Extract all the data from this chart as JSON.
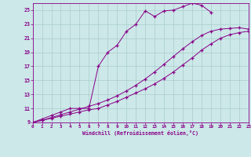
{
  "xlabel": "Windchill (Refroidissement éolien,°C)",
  "xlim": [
    0,
    23
  ],
  "ylim": [
    9,
    26
  ],
  "xticks": [
    0,
    1,
    2,
    3,
    4,
    5,
    6,
    7,
    8,
    9,
    10,
    11,
    12,
    13,
    14,
    15,
    16,
    17,
    18,
    19,
    20,
    21,
    22,
    23
  ],
  "yticks": [
    9,
    11,
    13,
    15,
    17,
    19,
    21,
    23,
    25
  ],
  "bg_color": "#cce8e8",
  "grid_color": "#aacccc",
  "line_color": "#880088",
  "curve1_x": [
    0,
    1,
    2,
    3,
    4,
    5,
    6,
    7,
    8,
    9,
    10,
    11,
    12,
    13,
    14,
    15,
    16,
    17,
    18,
    19
  ],
  "curve1_y": [
    9,
    9.5,
    10,
    10.5,
    11,
    11,
    11,
    17.0,
    19.0,
    20.0,
    22.0,
    23.0,
    24.9,
    24.1,
    24.9,
    25.0,
    25.5,
    26.0,
    25.7,
    24.7
  ],
  "curve2_x": [
    0,
    1,
    2,
    3,
    4,
    5,
    6,
    7,
    8,
    9,
    10,
    11,
    12,
    13,
    14,
    15,
    16,
    17,
    18,
    19,
    20,
    21,
    22,
    23
  ],
  "curve2_y": [
    9,
    9.3,
    9.6,
    9.9,
    10.2,
    10.5,
    10.8,
    11.0,
    11.5,
    12.0,
    12.6,
    13.2,
    13.8,
    14.5,
    15.3,
    16.2,
    17.2,
    18.2,
    19.3,
    20.2,
    21.0,
    21.5,
    21.8,
    22.0
  ],
  "curve3_x": [
    0,
    1,
    2,
    3,
    4,
    5,
    6,
    7,
    8,
    9,
    10,
    11,
    12,
    13,
    14,
    15,
    16,
    17,
    18,
    19,
    20,
    21,
    22,
    23
  ],
  "curve3_y": [
    9,
    9.3,
    9.7,
    10.1,
    10.5,
    10.9,
    11.3,
    11.7,
    12.2,
    12.8,
    13.5,
    14.3,
    15.2,
    16.2,
    17.3,
    18.4,
    19.5,
    20.5,
    21.4,
    22.0,
    22.3,
    22.4,
    22.5,
    22.3
  ]
}
